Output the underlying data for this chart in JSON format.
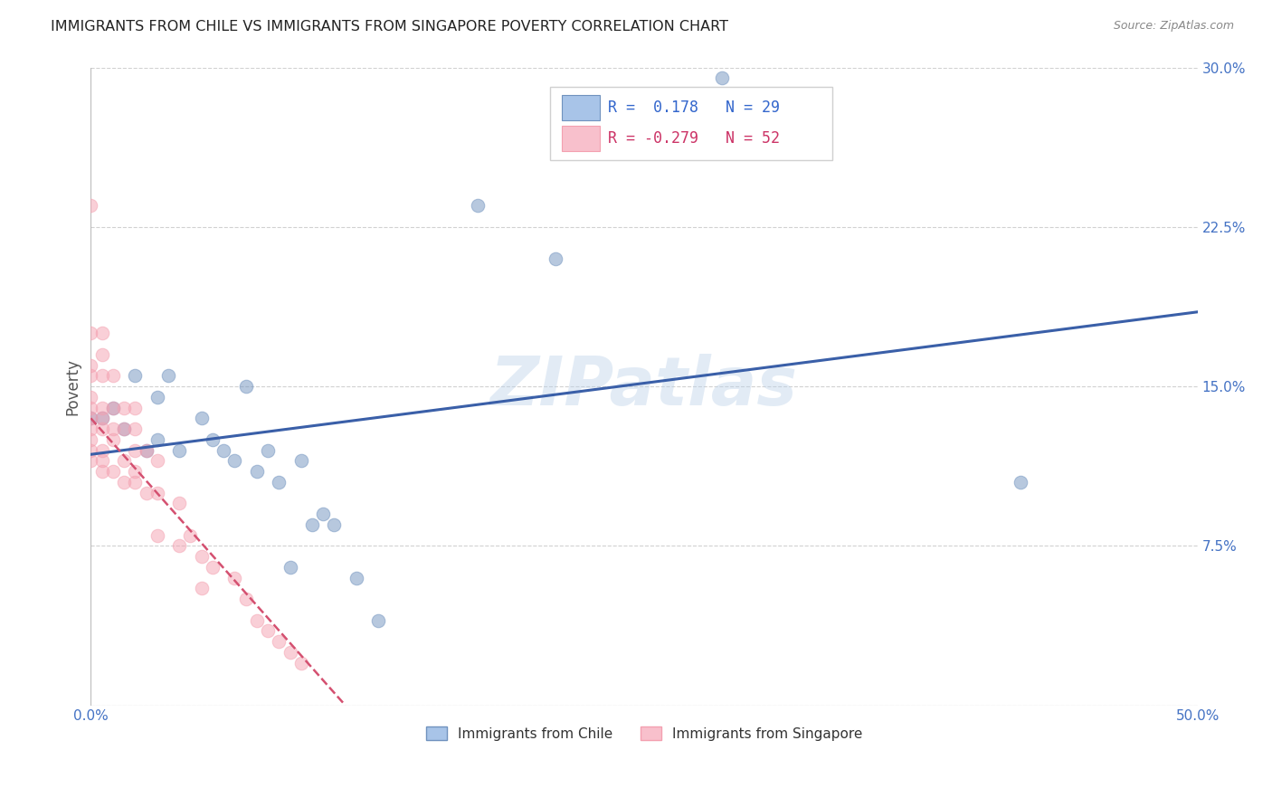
{
  "title": "IMMIGRANTS FROM CHILE VS IMMIGRANTS FROM SINGAPORE POVERTY CORRELATION CHART",
  "source": "Source: ZipAtlas.com",
  "ylabel": "Poverty",
  "xmin": 0.0,
  "xmax": 0.5,
  "ymin": 0.0,
  "ymax": 0.3,
  "xticks": [
    0.0,
    0.1,
    0.2,
    0.3,
    0.4,
    0.5
  ],
  "xtick_labels": [
    "0.0%",
    "",
    "",
    "",
    "",
    "50.0%"
  ],
  "yticks": [
    0.0,
    0.075,
    0.15,
    0.225,
    0.3
  ],
  "ytick_labels": [
    "",
    "7.5%",
    "15.0%",
    "22.5%",
    "30.0%"
  ],
  "chile_color": "#7092BE",
  "singapore_color": "#F4A0B0",
  "chile_label": "Immigrants from Chile",
  "singapore_label": "Immigrants from Singapore",
  "chile_R": 0.178,
  "chile_N": 29,
  "singapore_R": -0.279,
  "singapore_N": 52,
  "watermark": "ZIPatlas",
  "chile_points_x": [
    0.285,
    0.175,
    0.21,
    0.0,
    0.005,
    0.01,
    0.015,
    0.02,
    0.025,
    0.03,
    0.03,
    0.035,
    0.04,
    0.05,
    0.055,
    0.06,
    0.065,
    0.07,
    0.075,
    0.08,
    0.085,
    0.09,
    0.095,
    0.1,
    0.105,
    0.11,
    0.12,
    0.13,
    0.42
  ],
  "chile_points_y": [
    0.295,
    0.235,
    0.21,
    0.135,
    0.135,
    0.14,
    0.13,
    0.155,
    0.12,
    0.145,
    0.125,
    0.155,
    0.12,
    0.135,
    0.125,
    0.12,
    0.115,
    0.15,
    0.11,
    0.12,
    0.105,
    0.065,
    0.115,
    0.085,
    0.09,
    0.085,
    0.06,
    0.04,
    0.105
  ],
  "singapore_points_x": [
    0.0,
    0.0,
    0.0,
    0.0,
    0.0,
    0.0,
    0.0,
    0.0,
    0.0,
    0.0,
    0.0,
    0.005,
    0.005,
    0.005,
    0.005,
    0.005,
    0.005,
    0.005,
    0.005,
    0.005,
    0.01,
    0.01,
    0.01,
    0.01,
    0.01,
    0.015,
    0.015,
    0.015,
    0.015,
    0.02,
    0.02,
    0.02,
    0.02,
    0.02,
    0.025,
    0.025,
    0.03,
    0.03,
    0.03,
    0.04,
    0.04,
    0.045,
    0.05,
    0.05,
    0.055,
    0.065,
    0.07,
    0.075,
    0.08,
    0.085,
    0.09,
    0.095
  ],
  "singapore_points_y": [
    0.235,
    0.175,
    0.16,
    0.155,
    0.145,
    0.14,
    0.135,
    0.13,
    0.125,
    0.12,
    0.115,
    0.175,
    0.165,
    0.155,
    0.14,
    0.135,
    0.13,
    0.12,
    0.115,
    0.11,
    0.155,
    0.14,
    0.13,
    0.125,
    0.11,
    0.14,
    0.13,
    0.115,
    0.105,
    0.14,
    0.13,
    0.12,
    0.11,
    0.105,
    0.12,
    0.1,
    0.115,
    0.1,
    0.08,
    0.095,
    0.075,
    0.08,
    0.07,
    0.055,
    0.065,
    0.06,
    0.05,
    0.04,
    0.035,
    0.03,
    0.025,
    0.02
  ],
  "chile_trend_x0": 0.0,
  "chile_trend_x1": 0.5,
  "chile_trend_y0": 0.118,
  "chile_trend_y1": 0.185,
  "singapore_trend_x0": 0.0,
  "singapore_trend_x1": 0.115,
  "singapore_trend_y0": 0.135,
  "singapore_trend_y1": 0.0
}
